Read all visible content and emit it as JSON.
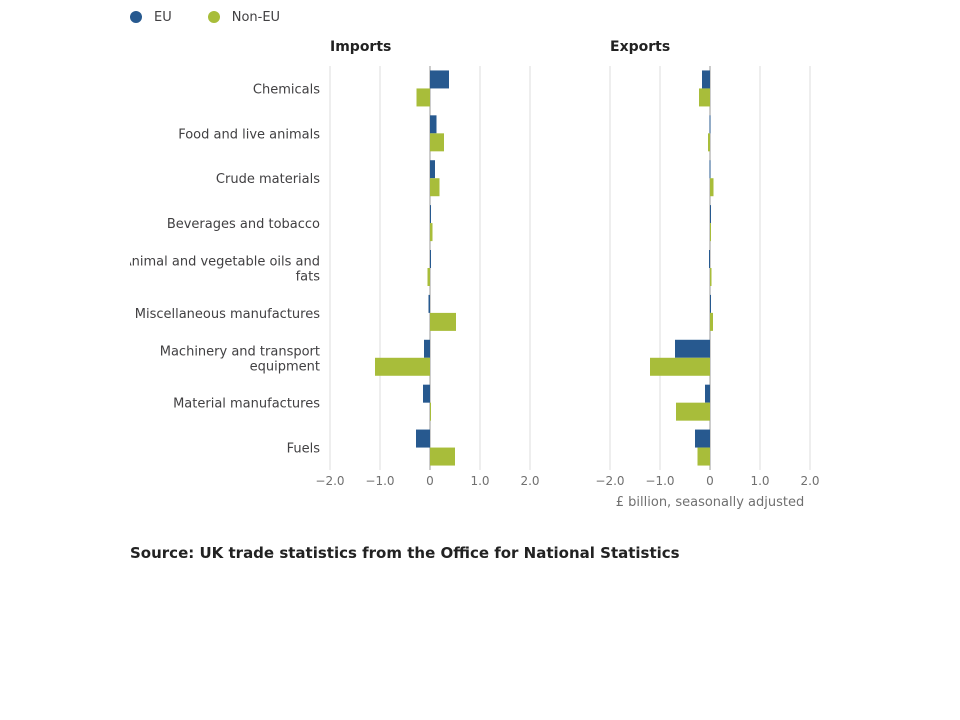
{
  "chart_data": {
    "type": "bar",
    "orientation": "horizontal",
    "categories": [
      "Chemicals",
      "Food and live animals",
      "Crude materials",
      "Beverages and tobacco",
      "Animal and vegetable oils and fats",
      "Miscellaneous manufactures",
      "Machinery and transport equipment",
      "Material manufactures",
      "Fuels"
    ],
    "category_lines": [
      [
        "Chemicals"
      ],
      [
        "Food and live animals"
      ],
      [
        "Crude materials"
      ],
      [
        "Beverages and tobacco"
      ],
      [
        "Animal and vegetable oils and",
        "fats"
      ],
      [
        "Miscellaneous manufactures"
      ],
      [
        "Machinery and transport",
        "equipment"
      ],
      [
        "Material manufactures"
      ],
      [
        "Fuels"
      ]
    ],
    "legend": [
      {
        "name": "EU",
        "color": "#27598f"
      },
      {
        "name": "Non-EU",
        "color": "#a8bd3a"
      }
    ],
    "xlim": [
      -2,
      2
    ],
    "ticks": [
      -2,
      -1,
      0,
      1,
      2
    ],
    "tick_labels": [
      "−2.0",
      "−1.0",
      "0",
      "1.0",
      "2.0"
    ],
    "xlabel": "£ billion, seasonally adjusted",
    "grid": true,
    "legend_placement": "top-left",
    "panels": [
      {
        "title": "Imports",
        "series": [
          {
            "name": "EU",
            "values": [
              0.38,
              0.13,
              0.1,
              0.02,
              0.0,
              -0.03,
              -0.12,
              -0.14,
              -0.28
            ]
          },
          {
            "name": "Non-EU",
            "values": [
              -0.27,
              0.28,
              0.19,
              0.05,
              -0.05,
              0.52,
              -1.1,
              0.0,
              0.5
            ]
          }
        ]
      },
      {
        "title": "Exports",
        "series": [
          {
            "name": "EU",
            "values": [
              -0.16,
              -0.01,
              -0.01,
              0.0,
              -0.02,
              0.0,
              -0.7,
              -0.1,
              -0.3
            ]
          },
          {
            "name": "Non-EU",
            "values": [
              -0.22,
              -0.04,
              0.07,
              0.01,
              0.03,
              0.06,
              -1.2,
              -0.68,
              -0.25
            ]
          }
        ]
      }
    ]
  },
  "source": "Source: UK trade statistics from the Office for National Statistics"
}
